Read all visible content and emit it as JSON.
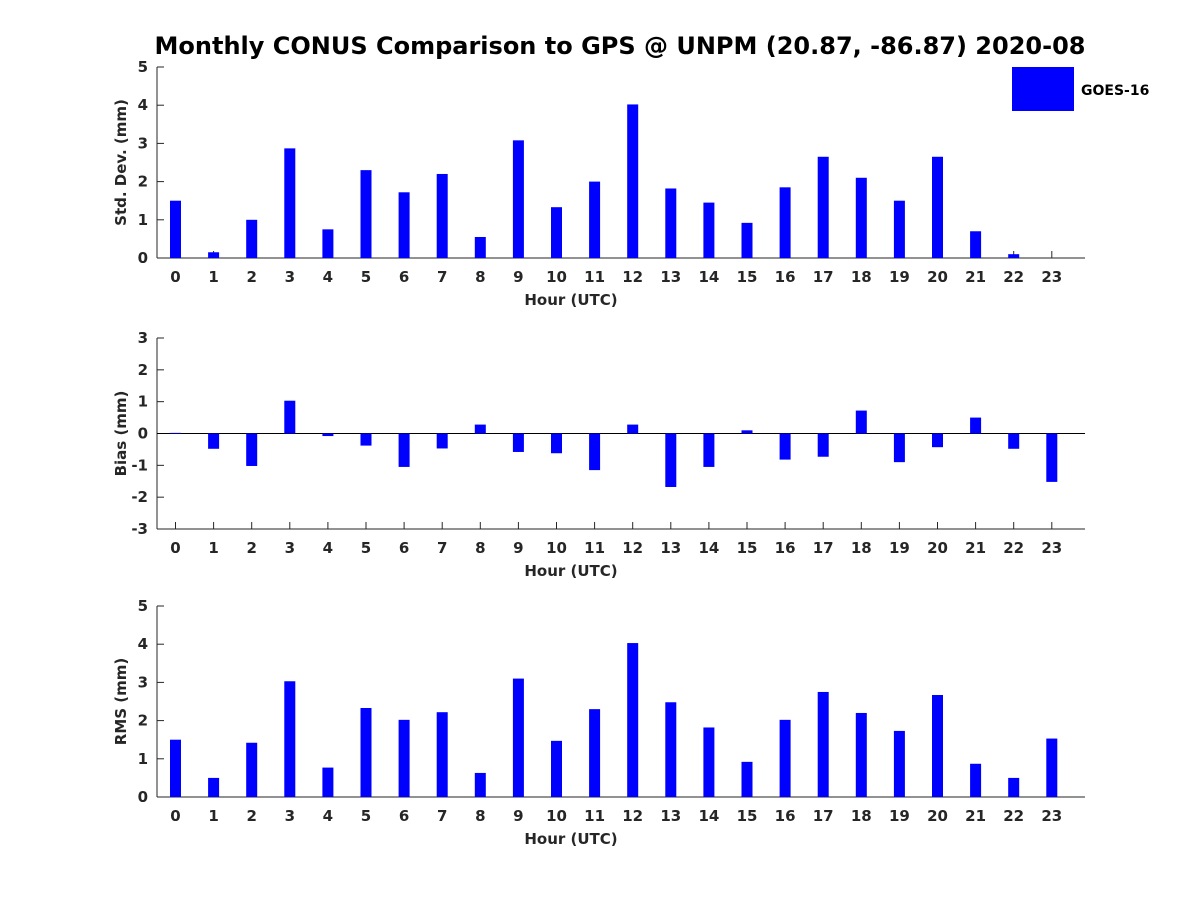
{
  "title": "Monthly CONUS Comparison to GPS @ UNPM (20.87, -86.87) 2020-08",
  "legend": {
    "label": "GOES-16",
    "color": "#0000ff",
    "placement": "top-right"
  },
  "chart_data": [
    {
      "type": "bar",
      "xlabel": "Hour (UTC)",
      "ylabel": "Std. Dev. (mm)",
      "ylim": [
        0,
        5
      ],
      "yticks": [
        0,
        1,
        2,
        3,
        4,
        5
      ],
      "categories": [
        "0",
        "1",
        "2",
        "3",
        "4",
        "5",
        "6",
        "7",
        "8",
        "9",
        "10",
        "11",
        "12",
        "13",
        "14",
        "15",
        "16",
        "17",
        "18",
        "19",
        "20",
        "21",
        "22",
        "23"
      ],
      "series": [
        {
          "name": "GOES-16",
          "values": [
            1.5,
            0.15,
            1.0,
            2.87,
            0.75,
            2.3,
            1.72,
            2.2,
            0.55,
            3.08,
            1.33,
            2.0,
            4.02,
            1.82,
            1.45,
            0.92,
            1.85,
            2.65,
            2.1,
            1.5,
            2.65,
            0.7,
            0.1,
            0.0
          ]
        }
      ],
      "grid": false
    },
    {
      "type": "bar",
      "xlabel": "Hour (UTC)",
      "ylabel": "Bias (mm)",
      "ylim": [
        -3,
        3
      ],
      "yticks": [
        -3,
        -2,
        -1,
        0,
        1,
        2,
        3
      ],
      "categories": [
        "0",
        "1",
        "2",
        "3",
        "4",
        "5",
        "6",
        "7",
        "8",
        "9",
        "10",
        "11",
        "12",
        "13",
        "14",
        "15",
        "16",
        "17",
        "18",
        "19",
        "20",
        "21",
        "22",
        "23"
      ],
      "series": [
        {
          "name": "GOES-16",
          "values": [
            0.02,
            -0.48,
            -1.02,
            1.03,
            -0.08,
            -0.38,
            -1.05,
            -0.47,
            0.28,
            -0.58,
            -0.62,
            -1.15,
            0.28,
            -1.68,
            -1.05,
            0.1,
            -0.82,
            -0.73,
            0.72,
            -0.9,
            -0.43,
            0.5,
            -0.48,
            -1.52
          ]
        }
      ],
      "grid": false
    },
    {
      "type": "bar",
      "xlabel": "Hour (UTC)",
      "ylabel": "RMS (mm)",
      "ylim": [
        0,
        5
      ],
      "yticks": [
        0,
        1,
        2,
        3,
        4,
        5
      ],
      "categories": [
        "0",
        "1",
        "2",
        "3",
        "4",
        "5",
        "6",
        "7",
        "8",
        "9",
        "10",
        "11",
        "12",
        "13",
        "14",
        "15",
        "16",
        "17",
        "18",
        "19",
        "20",
        "21",
        "22",
        "23"
      ],
      "series": [
        {
          "name": "GOES-16",
          "values": [
            1.5,
            0.5,
            1.42,
            3.03,
            0.77,
            2.33,
            2.02,
            2.22,
            0.63,
            3.1,
            1.47,
            2.3,
            4.03,
            2.48,
            1.82,
            0.92,
            2.02,
            2.75,
            2.2,
            1.73,
            2.67,
            0.87,
            0.5,
            1.53
          ]
        }
      ],
      "grid": false
    }
  ]
}
